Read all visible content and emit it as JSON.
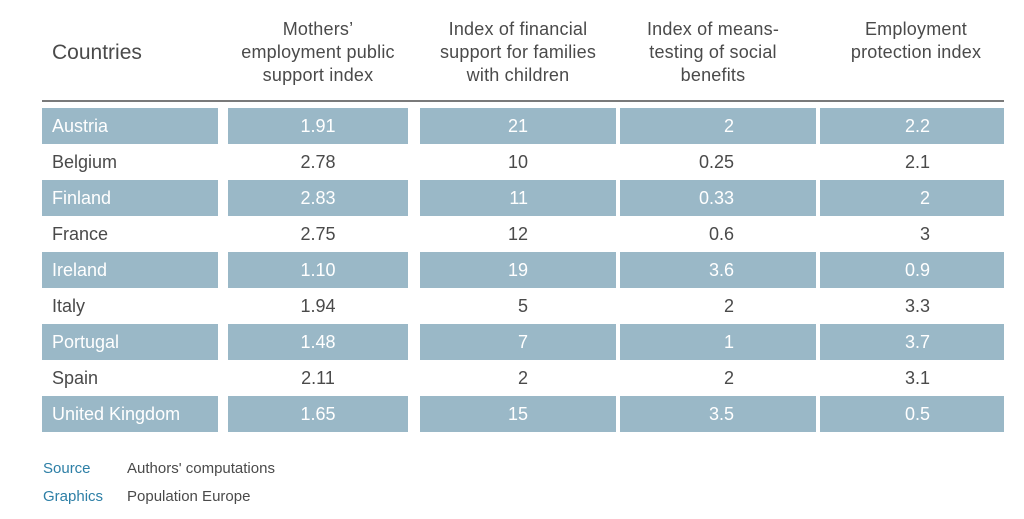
{
  "chart_data": {
    "type": "table",
    "columns": [
      "Countries",
      "Mothers' employment public support index",
      "Index of financial support for families with children",
      "Index of means-testing of social benefits",
      "Employment protection index"
    ],
    "header_lines": {
      "countries": "Countries",
      "c1": [
        "Mothers’",
        "employment public",
        "support index"
      ],
      "c2": [
        "Index of financial",
        "support for families",
        "with children"
      ],
      "c3": [
        "Index of means-",
        "testing of social",
        "benefits"
      ],
      "c4": [
        "Employment",
        "protection index"
      ]
    },
    "rows": [
      {
        "country": "Austria",
        "mothers": "1.91",
        "financial": "21",
        "means": "2",
        "employment": "2.2",
        "shaded": true
      },
      {
        "country": "Belgium",
        "mothers": "2.78",
        "financial": "10",
        "means": "0.25",
        "employment": "2.1",
        "shaded": false
      },
      {
        "country": "Finland",
        "mothers": "2.83",
        "financial": "11",
        "means": "0.33",
        "employment": "2",
        "shaded": true
      },
      {
        "country": "France",
        "mothers": "2.75",
        "financial": "12",
        "means": "0.6",
        "employment": "3",
        "shaded": false
      },
      {
        "country": "Ireland",
        "mothers": "1.10",
        "financial": "19",
        "means": "3.6",
        "employment": "0.9",
        "shaded": true
      },
      {
        "country": "Italy",
        "mothers": "1.94",
        "financial": "5",
        "means": "2",
        "employment": "3.3",
        "shaded": false
      },
      {
        "country": "Portugal",
        "mothers": "1.48",
        "financial": "7",
        "means": "1",
        "employment": "3.7",
        "shaded": true
      },
      {
        "country": "Spain",
        "mothers": "2.11",
        "financial": "2",
        "means": "2",
        "employment": "3.1",
        "shaded": false
      },
      {
        "country": "United Kingdom",
        "mothers": "1.65",
        "financial": "15",
        "means": "3.5",
        "employment": "0.5",
        "shaded": true
      }
    ]
  },
  "footer": {
    "source_key": "Source",
    "source_value": "Authors' computations",
    "graphics_key": "Graphics",
    "graphics_value": "Population Europe"
  },
  "colors": {
    "row_shade": "#9ab8c7",
    "footer_key": "#2d7fa6",
    "rule": "#7a7a7a"
  }
}
